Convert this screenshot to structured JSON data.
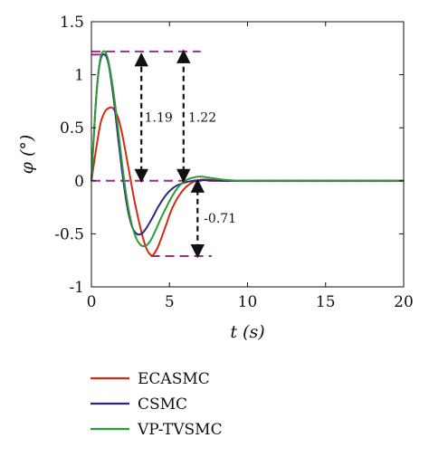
{
  "chart_data": {
    "type": "line",
    "xlabel": "t (s)",
    "ylabel": "φ (°)",
    "xlim": [
      0,
      20
    ],
    "ylim": [
      -1,
      1.5
    ],
    "xticks": [
      "0",
      "5",
      "10",
      "15",
      "20"
    ],
    "yticks": [
      "-1",
      "-0.5",
      "0",
      "0.5",
      "1",
      "1.5"
    ],
    "grid": false,
    "legend_position": "bottom-left, below plot",
    "series": [
      {
        "name": "ECASMC",
        "color": "#d62a10",
        "x": [
          0,
          0.3,
          0.6,
          0.9,
          1.2,
          1.4,
          1.7,
          2.0,
          2.4,
          2.8,
          3.2,
          3.5,
          3.8,
          4.0,
          4.3,
          4.7,
          5.2,
          5.8,
          6.4,
          7.0,
          7.5,
          8.0,
          9.0,
          10,
          12,
          15,
          20
        ],
        "y": [
          0,
          0.3,
          0.55,
          0.66,
          0.69,
          0.68,
          0.6,
          0.42,
          0.1,
          -0.22,
          -0.48,
          -0.63,
          -0.7,
          -0.69,
          -0.61,
          -0.45,
          -0.25,
          -0.1,
          -0.02,
          0.01,
          0.01,
          0.005,
          0,
          0,
          0,
          0,
          0
        ]
      },
      {
        "name": "CSMC",
        "color": "#2c2585",
        "x": [
          0,
          0.2,
          0.4,
          0.6,
          0.85,
          1.1,
          1.4,
          1.7,
          2.0,
          2.3,
          2.6,
          2.9,
          3.2,
          3.5,
          3.9,
          4.3,
          4.8,
          5.3,
          5.9,
          6.5,
          7.0,
          7.5,
          8.0,
          9.0,
          10,
          12,
          15,
          20
        ],
        "y": [
          0,
          0.55,
          0.95,
          1.15,
          1.19,
          1.1,
          0.8,
          0.42,
          0.05,
          -0.25,
          -0.43,
          -0.5,
          -0.5,
          -0.45,
          -0.35,
          -0.24,
          -0.13,
          -0.06,
          -0.02,
          0,
          0.005,
          0.005,
          0,
          0,
          0,
          0,
          0,
          0
        ]
      },
      {
        "name": "VP-TVSMC",
        "color": "#2e9a38",
        "x": [
          0,
          0.2,
          0.4,
          0.6,
          0.85,
          1.1,
          1.4,
          1.7,
          2.0,
          2.3,
          2.6,
          2.9,
          3.2,
          3.5,
          3.8,
          4.1,
          4.5,
          5.0,
          5.5,
          6.0,
          6.5,
          7.0,
          7.5,
          8.0,
          8.5,
          9.0,
          10,
          12,
          15,
          20
        ],
        "y": [
          0,
          0.55,
          0.95,
          1.17,
          1.22,
          1.12,
          0.85,
          0.5,
          0.12,
          -0.2,
          -0.42,
          -0.55,
          -0.61,
          -0.61,
          -0.56,
          -0.47,
          -0.34,
          -0.19,
          -0.07,
          0,
          0.03,
          0.04,
          0.03,
          0.02,
          0.01,
          0.005,
          0,
          0,
          0,
          0
        ]
      }
    ],
    "reference_lines": [
      {
        "y": 1.22,
        "x": [
          0,
          7
        ],
        "color": "#9a2c8c",
        "style": "dashed"
      },
      {
        "y": 1.19,
        "x": [
          0,
          0.85
        ],
        "color": "#9a2c8c",
        "style": "dashed"
      },
      {
        "y": 0,
        "x": [
          0,
          20
        ],
        "color": "#9a2c8c",
        "style": "dashed"
      },
      {
        "y": -0.71,
        "x": [
          3.8,
          7.7
        ],
        "color": "#9a2c8c",
        "style": "dashed"
      }
    ],
    "annotations": [
      {
        "text": "1.19",
        "arrow_x": 3.2,
        "from": 0,
        "to": 1.19,
        "label_x": 3.4,
        "label_y": 0.6
      },
      {
        "text": "1.22",
        "arrow_x": 5.9,
        "from": 0,
        "to": 1.22,
        "label_x": 6.2,
        "label_y": 0.6
      },
      {
        "text": "-0.71",
        "arrow_x": 6.8,
        "from": 0,
        "to": -0.71,
        "label_x": 7.2,
        "label_y": -0.35
      }
    ]
  }
}
